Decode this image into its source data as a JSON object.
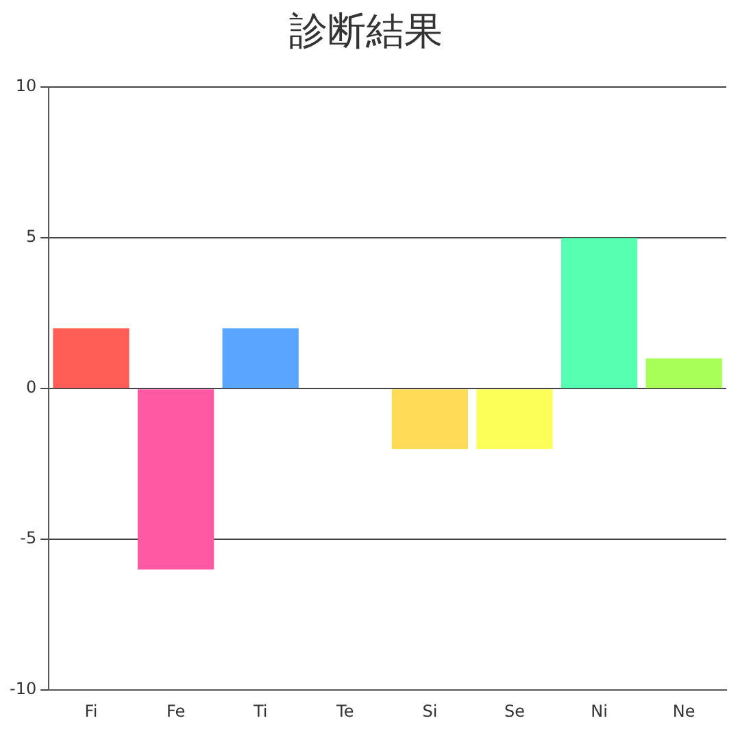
{
  "chart_data": {
    "type": "bar",
    "title": "診断結果",
    "categories": [
      "Fi",
      "Fe",
      "Ti",
      "Te",
      "Si",
      "Se",
      "Ni",
      "Ne"
    ],
    "values": [
      2,
      -6,
      2,
      0,
      -2,
      -2,
      5,
      1
    ],
    "colors": [
      "#ff5e57",
      "#ff59a3",
      "#5aa5ff",
      "#57d7ff",
      "#ffdb57",
      "#fbff57",
      "#57ffb1",
      "#a7ff57"
    ],
    "ylim": [
      -10,
      10
    ],
    "yticks": [
      -10,
      -5,
      0,
      5,
      10
    ],
    "grid": "y"
  }
}
